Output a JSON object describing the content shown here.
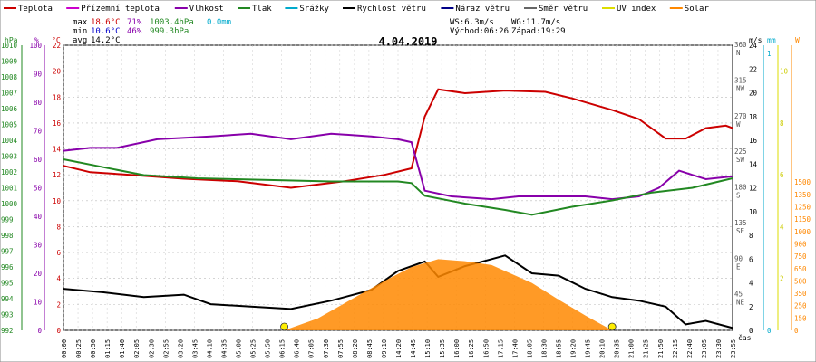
{
  "chart_data": {
    "type": "line",
    "title": "4.04.2019",
    "legend": [
      {
        "label": "Teplota",
        "color": "#cc0000"
      },
      {
        "label": "Přízemní teplota",
        "color": "#cc00cc"
      },
      {
        "label": "Vlhkost",
        "color": "#8800aa"
      },
      {
        "label": "Tlak",
        "color": "#228822"
      },
      {
        "label": "Srážky",
        "color": "#00aacc"
      },
      {
        "label": "Rychlost větru",
        "color": "#000000"
      },
      {
        "label": "Náraz větru",
        "color": "#000088"
      },
      {
        "label": "Směr větru",
        "color": "#666666"
      },
      {
        "label": "UV index",
        "color": "#dddd00"
      },
      {
        "label": "Solar",
        "color": "#ff8800"
      }
    ],
    "stats": {
      "max_label": "max",
      "max_temp": "18.6°C",
      "max_hum": "71%",
      "max_press": "1003.4hPa",
      "max_rain": "0.0mm",
      "min_label": "min",
      "min_temp": "10.6°C",
      "min_hum": "46%",
      "min_press": "999.3hPa",
      "avg_label": "avg",
      "avg_temp": "14.2°C"
    },
    "wind_stats": {
      "ws": "WS:6.3m/s",
      "wg": "WG:11.7m/s",
      "sunrise": "Východ:06:26",
      "sunset": "Západ:19:29"
    },
    "axes": {
      "left1_unit": "hPa",
      "left1": {
        "min": 992,
        "max": 1010,
        "ticks": [
          992,
          993,
          994,
          995,
          996,
          997,
          998,
          999,
          1000,
          1001,
          1002,
          1003,
          1004,
          1005,
          1006,
          1007,
          1008,
          1009,
          1010
        ]
      },
      "left2_unit": "%",
      "left2": {
        "min": 0,
        "max": 100,
        "ticks": [
          0,
          10,
          20,
          30,
          40,
          50,
          60,
          70,
          80,
          90,
          100
        ]
      },
      "left3_unit": "°C",
      "left3": {
        "min": 0,
        "max": 22,
        "ticks": [
          0,
          2,
          4,
          6,
          8,
          10,
          12,
          14,
          16,
          18,
          20,
          22
        ]
      },
      "right1_ticks": [
        {
          "v": "45",
          "d": "NE"
        },
        {
          "v": "90",
          "d": "E"
        },
        {
          "v": "135",
          "d": "SE"
        },
        {
          "v": "180",
          "d": "S"
        },
        {
          "v": "225",
          "d": "SW"
        },
        {
          "v": "270",
          "d": "W"
        },
        {
          "v": "315",
          "d": "NW"
        },
        {
          "v": "360",
          "d": "N"
        }
      ],
      "right2_unit": "m/s",
      "right2": {
        "min": 0,
        "max": 24,
        "ticks": [
          0,
          2,
          4,
          6,
          8,
          10,
          12,
          14,
          16,
          18,
          20,
          22,
          24
        ]
      },
      "right3_unit": "mm",
      "right3": {
        "ticks": [
          0,
          1
        ]
      },
      "right4_ticks": [
        2,
        4,
        6,
        8,
        10
      ],
      "right5_unit": "W",
      "right5": {
        "ticks": [
          0,
          150,
          250,
          350,
          500,
          650,
          750,
          900,
          1000,
          1150,
          1250,
          1350,
          1500
        ]
      },
      "xlabel": "čas",
      "xticks": [
        "00:00",
        "00:25",
        "00:50",
        "01:15",
        "01:40",
        "02:05",
        "02:30",
        "02:55",
        "03:20",
        "03:45",
        "04:10",
        "04:35",
        "05:00",
        "05:25",
        "05:50",
        "06:15",
        "06:40",
        "07:05",
        "07:30",
        "07:55",
        "08:20",
        "08:45",
        "09:10",
        "14:20",
        "14:45",
        "15:10",
        "15:35",
        "16:00",
        "16:25",
        "16:50",
        "17:15",
        "17:40",
        "18:05",
        "18:30",
        "18:55",
        "19:20",
        "19:45",
        "20:10",
        "20:35",
        "21:00",
        "21:25",
        "21:50",
        "22:15",
        "22:40",
        "23:05",
        "23:30",
        "23:55"
      ]
    },
    "series": [
      {
        "name": "Teplota",
        "color": "#cc0000",
        "axis": "temp",
        "points": [
          [
            0,
            12.7
          ],
          [
            0.04,
            12.2
          ],
          [
            0.1,
            12.0
          ],
          [
            0.18,
            11.7
          ],
          [
            0.26,
            11.5
          ],
          [
            0.34,
            11.0
          ],
          [
            0.42,
            11.5
          ],
          [
            0.48,
            12.0
          ],
          [
            0.52,
            12.5
          ],
          [
            0.54,
            16.5
          ],
          [
            0.56,
            18.6
          ],
          [
            0.6,
            18.3
          ],
          [
            0.66,
            18.5
          ],
          [
            0.72,
            18.4
          ],
          [
            0.76,
            17.9
          ],
          [
            0.82,
            17.0
          ],
          [
            0.86,
            16.3
          ],
          [
            0.9,
            14.8
          ],
          [
            0.93,
            14.8
          ],
          [
            0.96,
            15.6
          ],
          [
            0.99,
            15.8
          ],
          [
            1.0,
            15.6
          ]
        ]
      },
      {
        "name": "Vlhkost",
        "color": "#8800aa",
        "axis": "hum",
        "points": [
          [
            0,
            63
          ],
          [
            0.04,
            64
          ],
          [
            0.08,
            64
          ],
          [
            0.14,
            67
          ],
          [
            0.22,
            68
          ],
          [
            0.28,
            69
          ],
          [
            0.34,
            67
          ],
          [
            0.4,
            69
          ],
          [
            0.46,
            68
          ],
          [
            0.5,
            67
          ],
          [
            0.52,
            66
          ],
          [
            0.54,
            49
          ],
          [
            0.58,
            47
          ],
          [
            0.64,
            46
          ],
          [
            0.68,
            47
          ],
          [
            0.72,
            47
          ],
          [
            0.78,
            47
          ],
          [
            0.82,
            46
          ],
          [
            0.86,
            47
          ],
          [
            0.89,
            50
          ],
          [
            0.92,
            56
          ],
          [
            0.96,
            53
          ],
          [
            1.0,
            54
          ]
        ]
      },
      {
        "name": "Tlak",
        "color": "#228822",
        "axis": "press",
        "points": [
          [
            0,
            1002.8
          ],
          [
            0.06,
            1002.3
          ],
          [
            0.12,
            1001.8
          ],
          [
            0.2,
            1001.6
          ],
          [
            0.3,
            1001.5
          ],
          [
            0.4,
            1001.4
          ],
          [
            0.5,
            1001.4
          ],
          [
            0.52,
            1001.3
          ],
          [
            0.54,
            1000.5
          ],
          [
            0.6,
            1000.0
          ],
          [
            0.66,
            999.6
          ],
          [
            0.7,
            999.3
          ],
          [
            0.76,
            999.8
          ],
          [
            0.82,
            1000.2
          ],
          [
            0.88,
            1000.7
          ],
          [
            0.94,
            1001.0
          ],
          [
            1.0,
            1001.6
          ]
        ]
      },
      {
        "name": "Rychlost větru",
        "color": "#000000",
        "axis": "wind",
        "points": [
          [
            0,
            3.5
          ],
          [
            0.06,
            3.2
          ],
          [
            0.12,
            2.8
          ],
          [
            0.18,
            3.0
          ],
          [
            0.22,
            2.2
          ],
          [
            0.28,
            2.0
          ],
          [
            0.34,
            1.8
          ],
          [
            0.4,
            2.5
          ],
          [
            0.46,
            3.4
          ],
          [
            0.5,
            5.0
          ],
          [
            0.54,
            5.8
          ],
          [
            0.56,
            4.5
          ],
          [
            0.6,
            5.4
          ],
          [
            0.64,
            6.0
          ],
          [
            0.66,
            6.3
          ],
          [
            0.7,
            4.8
          ],
          [
            0.74,
            4.6
          ],
          [
            0.78,
            3.5
          ],
          [
            0.82,
            2.8
          ],
          [
            0.86,
            2.5
          ],
          [
            0.9,
            2.0
          ],
          [
            0.93,
            0.5
          ],
          [
            0.96,
            0.8
          ],
          [
            1.0,
            0.2
          ]
        ]
      },
      {
        "name": "Solar",
        "color": "#ff8800",
        "axis": "solar",
        "points": [
          [
            0.33,
            0
          ],
          [
            0.38,
            120
          ],
          [
            0.44,
            350
          ],
          [
            0.48,
            500
          ],
          [
            0.52,
            640
          ],
          [
            0.56,
            720
          ],
          [
            0.6,
            700
          ],
          [
            0.64,
            660
          ],
          [
            0.66,
            600
          ],
          [
            0.7,
            480
          ],
          [
            0.74,
            310
          ],
          [
            0.78,
            150
          ],
          [
            0.82,
            0
          ]
        ]
      }
    ]
  }
}
